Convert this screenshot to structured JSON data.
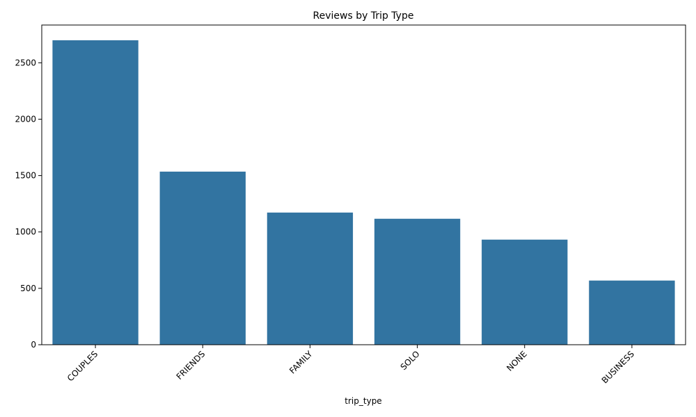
{
  "chart_data": {
    "type": "bar",
    "title": "Reviews by Trip Type",
    "xlabel": "trip_type",
    "ylabel": "",
    "categories": [
      "COUPLES",
      "FRIENDS",
      "FAMILY",
      "SOLO",
      "NONE",
      "BUSINESS"
    ],
    "values": [
      2700,
      1535,
      1172,
      1117,
      932,
      569
    ],
    "ylim": [
      0,
      2835
    ],
    "yticks": [
      0,
      500,
      1000,
      1500,
      2000,
      2500
    ],
    "grid": false,
    "bar_color": "#3274a1"
  }
}
